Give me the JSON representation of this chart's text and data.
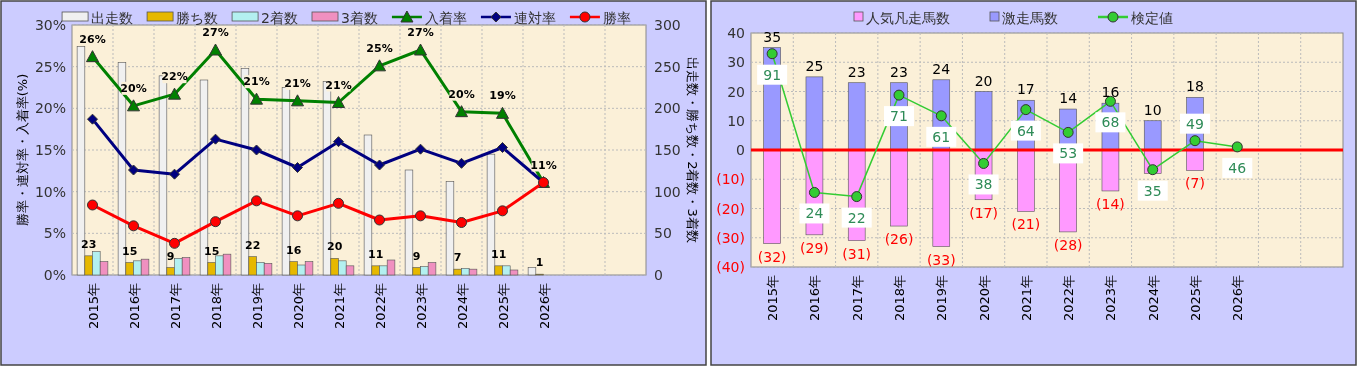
{
  "chart_data": [
    {
      "type": "bar",
      "categories": [
        "2015年",
        "2016年",
        "2017年",
        "2018年",
        "2019年",
        "2020年",
        "2021年",
        "2022年",
        "2023年",
        "2024年",
        "2025年",
        "2026年",
        null,
        null
      ],
      "ylabel": "勝率・連対率・入着率(%)",
      "y2label": "出走数・勝ち数・2着数・3着数",
      "ylim": [
        0,
        30
      ],
      "yticks": [
        {
          "value": 0,
          "label": "0%"
        },
        {
          "value": 5,
          "label": "5%"
        },
        {
          "value": 10,
          "label": "10%"
        },
        {
          "value": 15,
          "label": "15%"
        },
        {
          "value": 20,
          "label": "20%"
        },
        {
          "value": 25,
          "label": "25%"
        },
        {
          "value": 30,
          "label": "30%"
        }
      ],
      "y2lim": [
        0,
        300
      ],
      "y2ticks": [
        0,
        50,
        100,
        150,
        200,
        250,
        300
      ],
      "grid": true,
      "legend": "top",
      "series": [
        {
          "name": "出走数",
          "axis": "y2",
          "color": "#f0f0f0",
          "values": [
            274,
            255,
            239,
            234,
            248,
            225,
            232,
            168,
            126,
            112,
            145,
            9,
            null,
            null
          ]
        },
        {
          "name": "勝ち数",
          "axis": "y2",
          "color": "#e6b800",
          "values": [
            23,
            15,
            9,
            15,
            22,
            16,
            20,
            11,
            9,
            7,
            11,
            1,
            null,
            null
          ],
          "value_labels": [
            "23",
            "15",
            "9",
            "15",
            "22",
            "16",
            "20",
            "11",
            "9",
            "7",
            "11",
            "1",
            null,
            null
          ]
        },
        {
          "name": "2着数",
          "axis": "y2",
          "color": "#b3f0f0",
          "values": [
            28,
            17,
            20,
            23,
            15,
            12,
            17,
            11,
            10,
            8,
            11,
            0,
            null,
            null
          ]
        },
        {
          "name": "3着数",
          "axis": "y2",
          "color": "#f090c0",
          "values": [
            16,
            19,
            21,
            25,
            14,
            16,
            11,
            18,
            15,
            7,
            6,
            0,
            null,
            null
          ]
        },
        {
          "name": "入着率",
          "type": "line",
          "color": "#008000",
          "marker": "triangle",
          "values": [
            26.2,
            20.3,
            21.7,
            27.0,
            21.1,
            20.9,
            20.7,
            25.1,
            27.0,
            19.6,
            19.4,
            11.1,
            null,
            null
          ],
          "value_labels": [
            "26%",
            "20%",
            "22%",
            "27%",
            "21%",
            "21%",
            "21%",
            "25%",
            "27%",
            "20%",
            "19%",
            "11%",
            null,
            null
          ]
        },
        {
          "name": "連対率",
          "type": "line",
          "color": "#000080",
          "marker": "diamond",
          "values": [
            18.7,
            12.6,
            12.1,
            16.3,
            15.0,
            12.9,
            16.0,
            13.2,
            15.1,
            13.4,
            15.3,
            11.1,
            null,
            null
          ]
        },
        {
          "name": "勝率",
          "type": "line",
          "color": "#ff0000",
          "marker": "circle",
          "values": [
            8.4,
            5.9,
            3.8,
            6.4,
            8.9,
            7.1,
            8.6,
            6.6,
            7.1,
            6.3,
            7.7,
            11.1,
            null,
            null
          ]
        }
      ]
    },
    {
      "type": "bar",
      "stacked": true,
      "categories": [
        "2015年",
        "2016年",
        "2017年",
        "2018年",
        "2019年",
        "2020年",
        "2021年",
        "2022年",
        "2023年",
        "2024年",
        "2025年",
        "2026年",
        null,
        null
      ],
      "ylim": [
        -40,
        40
      ],
      "yticks": [
        {
          "value": -40,
          "label": "(40)"
        },
        {
          "value": -30,
          "label": "(30)"
        },
        {
          "value": -20,
          "label": "(20)"
        },
        {
          "value": -10,
          "label": "(10)"
        },
        0,
        10,
        20,
        30,
        40
      ],
      "y2lim": [
        -12,
        101
      ],
      "grid": true,
      "legend": "top",
      "ref_lines": [
        {
          "axis": "y",
          "value": 0,
          "color": "#ff0000"
        }
      ],
      "series": [
        {
          "name": "人気凡走馬数",
          "color": "#ff99ff",
          "values": [
            -32,
            -29,
            -31,
            -26,
            -33,
            -17,
            -21,
            -28,
            -14,
            -8,
            -7,
            null,
            null,
            null
          ],
          "value_labels": [
            "(32)",
            "(29)",
            "(31)",
            "(26)",
            "(33)",
            "(17)",
            "(21)",
            "(28)",
            "(14)",
            null,
            "(7)",
            null,
            null,
            null
          ]
        },
        {
          "name": "激走馬数",
          "color": "#9999ff",
          "values": [
            35,
            25,
            23,
            23,
            24,
            20,
            17,
            14,
            16,
            10,
            18,
            null,
            null,
            null
          ],
          "value_labels": [
            "35",
            "25",
            "23",
            "23",
            "24",
            "20",
            "17",
            "14",
            "16",
            "10",
            "18",
            null,
            null,
            null
          ]
        },
        {
          "name": "検定値",
          "type": "line",
          "axis": "y2",
          "color": "#33cc33",
          "marker": "circle",
          "values": [
            91,
            24,
            22,
            71,
            61,
            38,
            64,
            53,
            68,
            35,
            49,
            46,
            null,
            null
          ],
          "value_labels": [
            "91",
            "24",
            "22",
            "71",
            "61",
            "38",
            "64",
            "53",
            "68",
            "35",
            "49",
            "46",
            null,
            null
          ]
        }
      ]
    }
  ]
}
